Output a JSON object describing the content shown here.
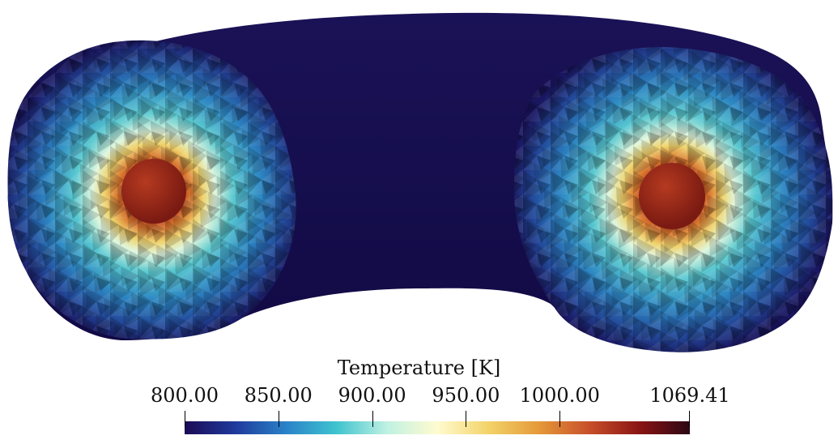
{
  "view": {
    "object": "toroidal-mesh",
    "background": "#ffffff"
  },
  "colorbar": {
    "title": "Temperature [K]",
    "min": 800.0,
    "max": 1069.41,
    "ticks": [
      {
        "value": 800.0,
        "label": "800.00"
      },
      {
        "value": 850.0,
        "label": "850.00"
      },
      {
        "value": 900.0,
        "label": "900.00"
      },
      {
        "value": 950.0,
        "label": "950.00"
      },
      {
        "value": 1000.0,
        "label": "1000.00"
      },
      {
        "value": 1069.41,
        "label": "1069.41"
      }
    ],
    "colormap": [
      "#1b0b55",
      "#1f3a9c",
      "#2a82c8",
      "#3ec3cf",
      "#bff1e2",
      "#fffbd0",
      "#f3d46a",
      "#e59a3a",
      "#c8502a",
      "#8a1414",
      "#2b0714"
    ]
  }
}
